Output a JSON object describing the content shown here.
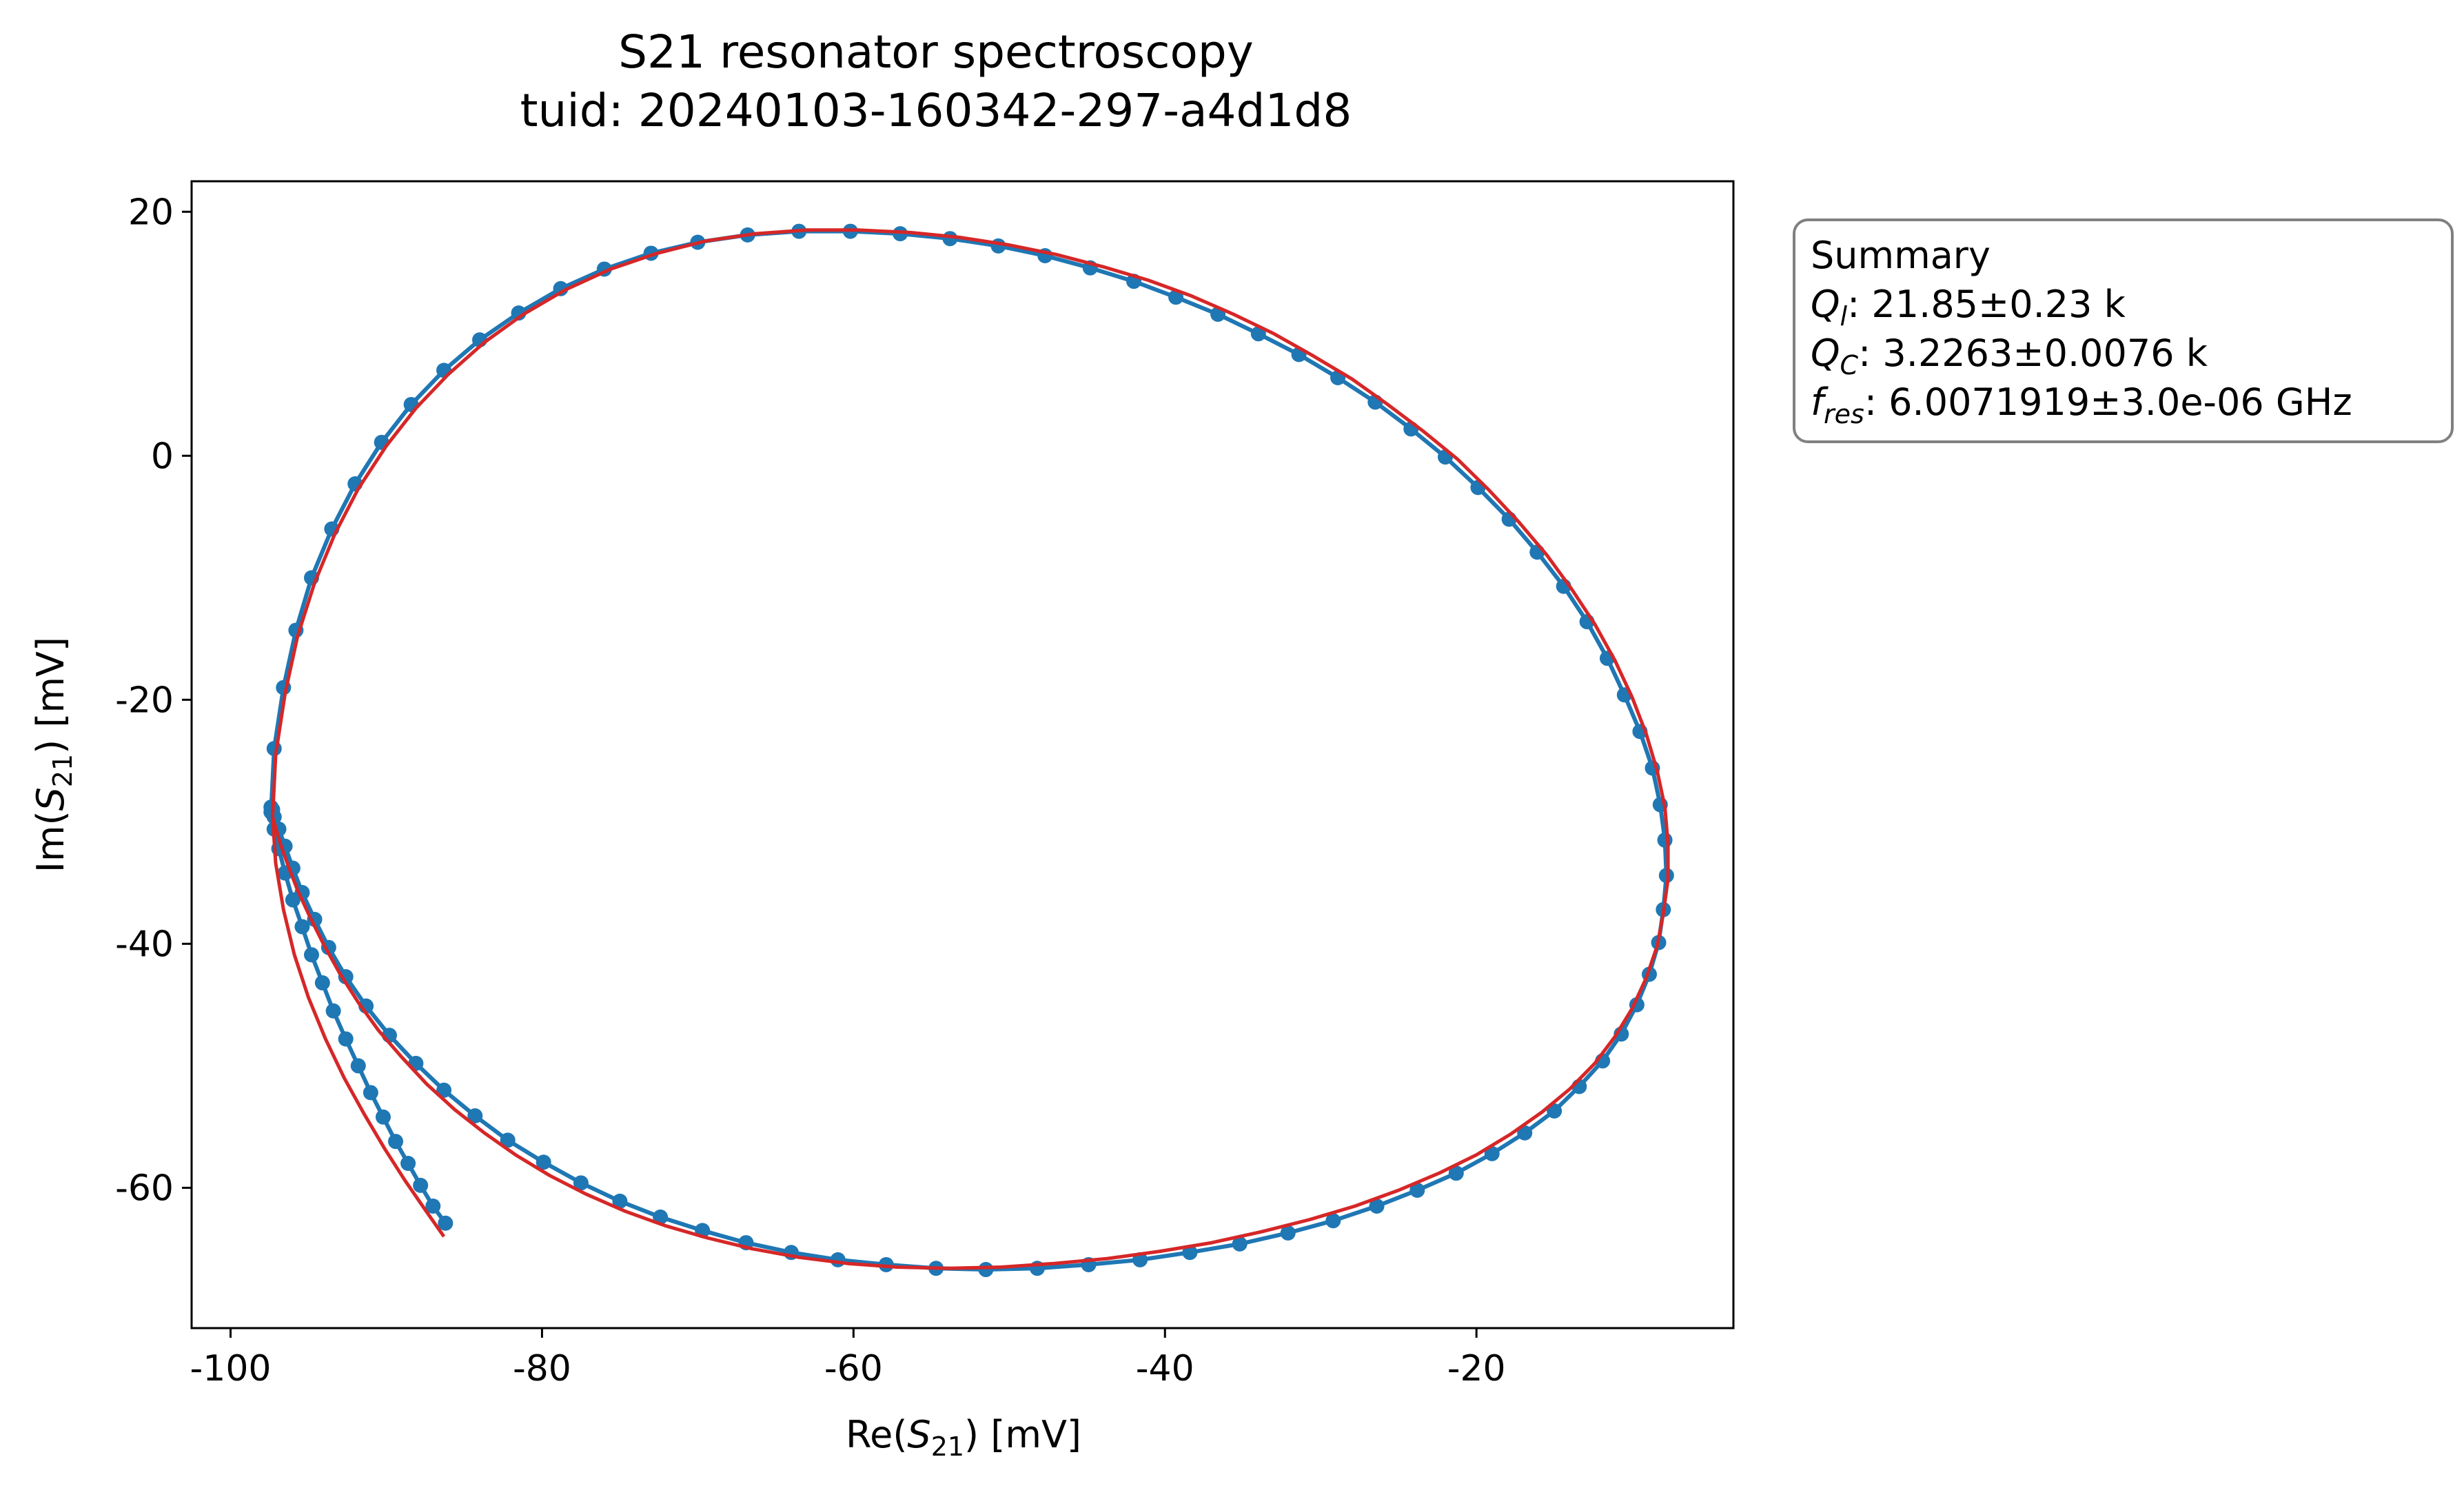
{
  "chart_data": {
    "type": "scatter",
    "title_line1": "S21 resonator spectroscopy",
    "title_line2": "tuid: 20240103-160342-297-a4d1d8",
    "xlabel": "Re(S21) [mV]",
    "ylabel": "Im(S21) [mV]",
    "xlim": [
      -102.5,
      -3.5
    ],
    "ylim": [
      -71.5,
      22.5
    ],
    "xticks": [
      -100,
      -80,
      -60,
      -40,
      -20
    ],
    "xtick_labels": [
      "-100",
      "-80",
      "-60",
      "-40",
      "-20"
    ],
    "yticks": [
      20,
      0,
      -20,
      -40,
      -60
    ],
    "ytick_labels": [
      "20",
      "0",
      "-20",
      "-40",
      "-60"
    ],
    "grid": false,
    "legend_box": {
      "placement": "outside-top-right",
      "lines": [
        "Summary",
        "Ql: 21.85±0.23 k",
        "QC: 3.2263±0.0076 k",
        "fres: 6.0071919±3.0e-06 GHz"
      ],
      "values": {
        "ql": ": 21.85±0.23 k",
        "qc": ": 3.2263±0.0076 k",
        "fres": ": 6.0071919±3.0e-06 GHz"
      }
    },
    "series": [
      {
        "color": "#1f77b4",
        "style": "line-with-markers",
        "x": [
          -86.2,
          -87.0,
          -87.8,
          -88.6,
          -89.4,
          -90.2,
          -91.0,
          -91.8,
          -92.6,
          -93.4,
          -94.1,
          -94.8,
          -95.4,
          -96.0,
          -96.5,
          -96.9,
          -97.2,
          -97.4,
          -97.2,
          -96.6,
          -95.8,
          -94.8,
          -93.5,
          -92.0,
          -90.3,
          -88.4,
          -86.3,
          -84.0,
          -81.5,
          -78.8,
          -76.0,
          -73.0,
          -70.0,
          -66.8,
          -63.5,
          -60.2,
          -57.0,
          -53.8,
          -50.7,
          -47.7,
          -44.8,
          -42.0,
          -39.3,
          -36.6,
          -34.0,
          -31.4,
          -28.9,
          -26.5,
          -24.2,
          -22.0,
          -19.9,
          -17.9,
          -16.1,
          -14.4,
          -12.9,
          -11.6,
          -10.5,
          -9.5,
          -8.7,
          -8.2,
          -7.9,
          -7.8,
          -8.0,
          -8.3,
          -8.9,
          -9.7,
          -10.7,
          -11.9,
          -13.4,
          -15.0,
          -16.9,
          -19.0,
          -21.3,
          -23.8,
          -26.4,
          -29.2,
          -32.1,
          -35.2,
          -38.4,
          -41.6,
          -44.9,
          -48.2,
          -51.5,
          -54.7,
          -57.9,
          -61.0,
          -64.0,
          -66.9,
          -69.7,
          -72.4,
          -75.0,
          -77.5,
          -79.9,
          -82.2,
          -84.3,
          -86.3,
          -88.1,
          -89.8,
          -91.3,
          -92.6,
          -93.7,
          -94.6,
          -95.4,
          -96.0,
          -96.5,
          -96.9,
          -97.2,
          -97.3,
          -97.4
        ],
        "y": [
          -62.9,
          -61.5,
          -59.8,
          -58.0,
          -56.2,
          -54.2,
          -52.2,
          -50.0,
          -47.8,
          -45.5,
          -43.2,
          -40.9,
          -38.6,
          -36.4,
          -34.2,
          -32.2,
          -30.6,
          -29.2,
          -24.0,
          -19.0,
          -14.3,
          -10.0,
          -6.0,
          -2.3,
          1.1,
          4.2,
          7.0,
          9.5,
          11.7,
          13.7,
          15.3,
          16.6,
          17.5,
          18.1,
          18.4,
          18.4,
          18.2,
          17.8,
          17.2,
          16.4,
          15.4,
          14.3,
          13.0,
          11.6,
          10.0,
          8.3,
          6.4,
          4.4,
          2.2,
          -0.1,
          -2.6,
          -5.2,
          -7.9,
          -10.7,
          -13.6,
          -16.6,
          -19.6,
          -22.6,
          -25.6,
          -28.6,
          -31.5,
          -34.4,
          -37.2,
          -39.9,
          -42.5,
          -45.0,
          -47.4,
          -49.6,
          -51.7,
          -53.7,
          -55.5,
          -57.2,
          -58.8,
          -60.2,
          -61.5,
          -62.7,
          -63.7,
          -64.6,
          -65.3,
          -65.9,
          -66.3,
          -66.6,
          -66.7,
          -66.6,
          -66.3,
          -65.9,
          -65.3,
          -64.5,
          -63.5,
          -62.4,
          -61.1,
          -59.6,
          -57.9,
          -56.1,
          -54.1,
          -52.0,
          -49.8,
          -47.5,
          -45.1,
          -42.7,
          -40.3,
          -38.0,
          -35.8,
          -33.8,
          -32.0,
          -30.6,
          -29.6,
          -29.0,
          -28.8
        ]
      },
      {
        "color": "#d62728",
        "style": "line",
        "x": [
          -86.3,
          -87.5,
          -88.8,
          -90.1,
          -91.4,
          -92.7,
          -93.9,
          -95.0,
          -95.9,
          -96.6,
          -97.1,
          -97.3,
          -97.1,
          -96.5,
          -95.7,
          -94.6,
          -93.3,
          -91.8,
          -90.0,
          -88.1,
          -86.0,
          -83.7,
          -81.2,
          -78.5,
          -75.6,
          -72.6,
          -69.5,
          -66.3,
          -63.0,
          -59.7,
          -56.4,
          -53.2,
          -50.1,
          -47.0,
          -44.0,
          -41.1,
          -38.3,
          -35.6,
          -33.0,
          -30.5,
          -28.0,
          -25.7,
          -23.4,
          -21.2,
          -19.2,
          -17.3,
          -15.5,
          -13.9,
          -12.4,
          -11.1,
          -10.0,
          -9.1,
          -8.4,
          -7.9,
          -7.7,
          -7.7,
          -8.0,
          -8.4,
          -9.1,
          -10.0,
          -11.1,
          -12.4,
          -14.0,
          -15.8,
          -17.8,
          -20.0,
          -22.4,
          -25.0,
          -27.8,
          -30.7,
          -33.8,
          -37.0,
          -40.3,
          -43.7,
          -47.1,
          -50.5,
          -53.9,
          -57.2,
          -60.4,
          -63.5,
          -66.5,
          -69.4,
          -72.1,
          -74.7,
          -77.2,
          -79.5,
          -81.7,
          -83.7,
          -85.6,
          -87.4,
          -89.0,
          -90.5,
          -91.8,
          -93.0,
          -94.0,
          -94.9,
          -95.7,
          -96.3,
          -96.8,
          -97.1,
          -97.3
        ],
        "y": [
          -64.0,
          -61.8,
          -59.4,
          -56.8,
          -54.0,
          -51.0,
          -47.8,
          -44.4,
          -40.9,
          -37.2,
          -33.4,
          -29.6,
          -24.5,
          -19.5,
          -14.8,
          -10.4,
          -6.4,
          -2.7,
          0.8,
          3.9,
          6.7,
          9.3,
          11.6,
          13.6,
          15.3,
          16.6,
          17.6,
          18.2,
          18.5,
          18.5,
          18.3,
          17.9,
          17.3,
          16.5,
          15.5,
          14.4,
          13.1,
          11.6,
          10.0,
          8.2,
          6.3,
          4.2,
          2.0,
          -0.3,
          -2.8,
          -5.4,
          -8.1,
          -10.9,
          -13.8,
          -16.8,
          -19.8,
          -22.8,
          -25.8,
          -28.8,
          -31.8,
          -34.7,
          -37.5,
          -40.2,
          -42.8,
          -45.3,
          -47.6,
          -49.8,
          -51.9,
          -53.8,
          -55.6,
          -57.3,
          -58.8,
          -60.2,
          -61.5,
          -62.6,
          -63.6,
          -64.5,
          -65.2,
          -65.8,
          -66.2,
          -66.5,
          -66.6,
          -66.5,
          -66.2,
          -65.7,
          -65.0,
          -64.1,
          -63.1,
          -61.9,
          -60.5,
          -59.0,
          -57.3,
          -55.5,
          -53.6,
          -51.5,
          -49.3,
          -47.1,
          -44.8,
          -42.4,
          -40.1,
          -37.8,
          -35.6,
          -33.6,
          -31.8,
          -30.5,
          -29.6
        ]
      }
    ]
  }
}
